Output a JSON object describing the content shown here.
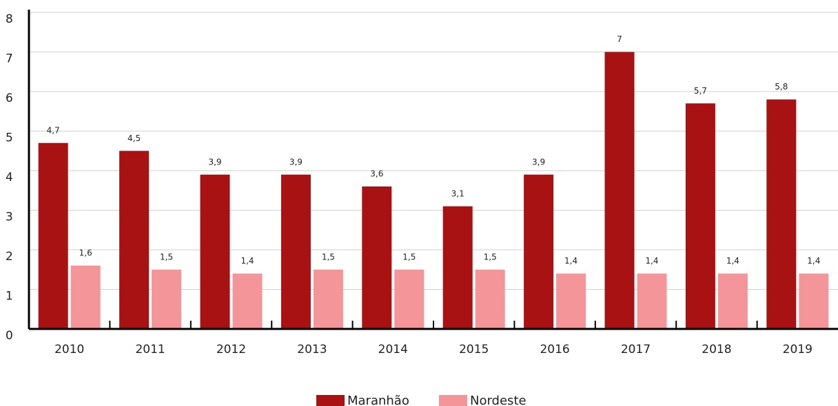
{
  "chart_data": {
    "type": "bar",
    "categories": [
      "2010",
      "2011",
      "2012",
      "2013",
      "2014",
      "2015",
      "2016",
      "2017",
      "2018",
      "2019"
    ],
    "series": [
      {
        "name": "Maranhão",
        "color": "#a81212",
        "values": [
          4.7,
          4.5,
          3.9,
          3.9,
          3.6,
          3.1,
          3.9,
          7,
          5.7,
          5.8
        ],
        "value_labels": [
          "4,7",
          "4,5",
          "3,9",
          "3,9",
          "3,6",
          "3,1",
          "3,9",
          "7",
          "5,7",
          "5,8"
        ]
      },
      {
        "name": "Nordeste",
        "color": "#f4959a",
        "values": [
          1.6,
          1.5,
          1.4,
          1.5,
          1.5,
          1.5,
          1.4,
          1.4,
          1.4,
          1.4
        ],
        "value_labels": [
          "1,6",
          "1,5",
          "1,4",
          "1,5",
          "1,5",
          "1,5",
          "1,4",
          "1,4",
          "1,4",
          "1,4"
        ]
      }
    ],
    "ylim": [
      0,
      8
    ],
    "yticks": [
      0,
      1,
      2,
      3,
      4,
      5,
      6,
      7,
      8
    ],
    "grid": true,
    "legend": "bottom"
  }
}
